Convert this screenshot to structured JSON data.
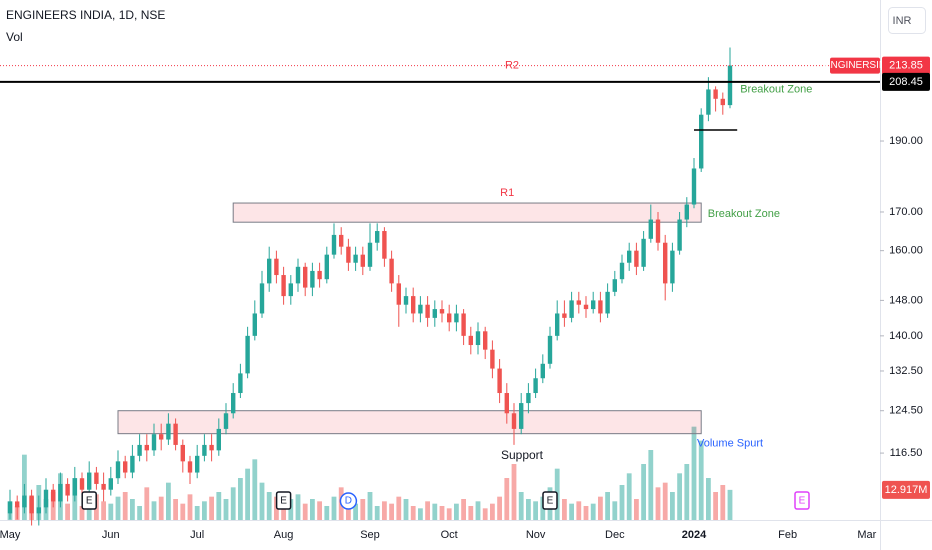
{
  "chart_data": {
    "type": "candlestick",
    "title": "ENGINEERS INDIA, 1D, NSE",
    "indicator": "Vol",
    "currency": "INR",
    "symbol": "ENGINERSIN",
    "log_scale": true,
    "up_color": "#26a69a",
    "down_color": "#ef5350",
    "ylim": [
      104.9,
      237
    ],
    "yticks": [
      {
        "value": 116.5,
        "label": "116.50"
      },
      {
        "value": 124.5,
        "label": "124.50"
      },
      {
        "value": 132.5,
        "label": "132.50"
      },
      {
        "value": 140,
        "label": "140.00"
      },
      {
        "value": 148,
        "label": "148.00"
      },
      {
        "value": 160,
        "label": "160.00"
      },
      {
        "value": 170,
        "label": "170.00"
      },
      {
        "value": 190,
        "label": "190.00"
      }
    ],
    "categories": [
      "May",
      null,
      null,
      null,
      null,
      null,
      null,
      null,
      null,
      null,
      null,
      null,
      null,
      null,
      "Jun",
      null,
      null,
      null,
      null,
      null,
      null,
      null,
      null,
      null,
      null,
      null,
      "Jul",
      null,
      null,
      null,
      null,
      null,
      null,
      null,
      null,
      null,
      null,
      null,
      "Aug",
      null,
      null,
      null,
      null,
      null,
      null,
      null,
      null,
      null,
      null,
      null,
      "Sep",
      null,
      null,
      null,
      null,
      null,
      null,
      null,
      null,
      null,
      null,
      "Oct",
      null,
      null,
      null,
      null,
      null,
      null,
      null,
      null,
      null,
      null,
      null,
      "Nov",
      null,
      null,
      null,
      null,
      null,
      null,
      null,
      null,
      null,
      null,
      "Dec",
      null,
      null,
      null,
      null,
      null,
      null,
      null,
      null,
      null,
      null,
      "2024",
      null,
      null,
      null,
      null,
      null,
      null,
      null,
      null,
      null,
      null,
      null,
      null,
      "Feb",
      null,
      null,
      null,
      null,
      null,
      null,
      null,
      null,
      null,
      null,
      "Mar",
      null
    ],
    "open": [
      106,
      108,
      107,
      109,
      106,
      107,
      110,
      108,
      111,
      109,
      112,
      110,
      113,
      111,
      110,
      112,
      115,
      113,
      116,
      118,
      117,
      120,
      119,
      122,
      118,
      115,
      113,
      116,
      118,
      117,
      121,
      124,
      128,
      132,
      140,
      145,
      152,
      158,
      154,
      149,
      152,
      156,
      151,
      155,
      153,
      159,
      164,
      161,
      157,
      159,
      156,
      162,
      165,
      158,
      152,
      147,
      149,
      145,
      147,
      144,
      146,
      145,
      143,
      145,
      140,
      138,
      141,
      137,
      133,
      128,
      124,
      121,
      126,
      128,
      131,
      134,
      140,
      145,
      144,
      148,
      147,
      146,
      148,
      145,
      150,
      153,
      157,
      160,
      156,
      163,
      168,
      162,
      152,
      160,
      168,
      172,
      182,
      198,
      206,
      203,
      201,
      null,
      null,
      null,
      null,
      null,
      null,
      null,
      null,
      null,
      null,
      null,
      null,
      null,
      null,
      null,
      null,
      null,
      null,
      null,
      null
    ],
    "high": [
      110,
      109,
      111,
      110,
      109,
      112,
      111,
      113,
      112,
      114,
      113,
      115,
      114,
      113,
      114,
      117,
      116,
      118,
      120,
      120,
      122,
      122,
      124,
      123,
      119,
      116,
      118,
      120,
      120,
      123,
      126,
      130,
      134,
      142,
      148,
      155,
      161,
      160,
      156,
      154,
      158,
      157,
      157,
      157,
      161,
      167,
      166,
      163,
      161,
      161,
      167,
      167,
      166,
      160,
      154,
      151,
      151,
      149,
      149,
      148,
      148,
      147,
      147,
      146,
      142,
      143,
      142,
      139,
      135,
      130,
      126,
      128,
      130,
      133,
      136,
      142,
      148,
      148,
      150,
      150,
      149,
      150,
      150,
      152,
      155,
      159,
      162,
      162,
      165,
      172,
      170,
      164,
      162,
      170,
      174,
      185,
      200,
      210,
      207,
      205,
      220,
      null,
      null,
      null,
      null,
      null,
      null,
      null,
      null,
      null,
      null,
      null,
      null,
      null,
      null,
      null,
      null,
      null,
      null,
      null,
      null
    ],
    "low": [
      105,
      105,
      106,
      104,
      104,
      106,
      107,
      107,
      108,
      108,
      109,
      109,
      110,
      108,
      109,
      111,
      112,
      112,
      115,
      115,
      116,
      117,
      118,
      117,
      113,
      111,
      112,
      115,
      115,
      116,
      120,
      123,
      127,
      131,
      139,
      144,
      150,
      152,
      147,
      147,
      150,
      149,
      149,
      151,
      152,
      158,
      159,
      155,
      155,
      154,
      155,
      160,
      156,
      150,
      142,
      145,
      143,
      143,
      142,
      142,
      143,
      141,
      141,
      138,
      136,
      136,
      135,
      131,
      126,
      122,
      118,
      120,
      124,
      127,
      130,
      133,
      139,
      142,
      143,
      145,
      144,
      145,
      143,
      144,
      149,
      152,
      155,
      154,
      155,
      162,
      160,
      148,
      150,
      159,
      166,
      171,
      181,
      196,
      199,
      198,
      200,
      null,
      null,
      null,
      null,
      null,
      null,
      null,
      null,
      null,
      null,
      null,
      null,
      null,
      null,
      null,
      null,
      null,
      null,
      null,
      null
    ],
    "close": [
      108,
      107,
      109,
      106,
      107,
      110,
      108,
      111,
      109,
      112,
      110,
      113,
      111,
      110,
      112,
      115,
      113,
      116,
      118,
      117,
      120,
      119,
      122,
      118,
      115,
      113,
      116,
      118,
      117,
      121,
      124,
      128,
      132,
      140,
      145,
      152,
      158,
      154,
      149,
      152,
      156,
      151,
      155,
      153,
      159,
      164,
      161,
      157,
      159,
      156,
      162,
      165,
      158,
      152,
      147,
      149,
      145,
      147,
      144,
      146,
      145,
      143,
      145,
      140,
      138,
      141,
      137,
      133,
      128,
      124,
      121,
      126,
      128,
      131,
      134,
      140,
      145,
      144,
      148,
      147,
      146,
      148,
      145,
      150,
      153,
      157,
      160,
      156,
      163,
      168,
      162,
      152,
      160,
      168,
      172,
      182,
      198,
      206,
      203,
      201,
      213.85,
      null,
      null,
      null,
      null,
      null,
      null,
      null,
      null,
      null,
      null,
      null,
      null,
      null,
      null,
      null,
      null,
      null,
      null,
      null,
      null
    ],
    "volume": {
      "ylim": [
        0,
        60
      ],
      "values": [
        8,
        6,
        28,
        10,
        15,
        9,
        12,
        20,
        7,
        18,
        6,
        9,
        11,
        8,
        7,
        10,
        12,
        9,
        6,
        14,
        8,
        10,
        16,
        9,
        7,
        11,
        6,
        8,
        10,
        12,
        9,
        14,
        18,
        22,
        26,
        16,
        12,
        10,
        8,
        9,
        11,
        7,
        9,
        8,
        6,
        10,
        14,
        8,
        7,
        9,
        12,
        6,
        8,
        7,
        10,
        9,
        6,
        5,
        8,
        7,
        6,
        5,
        7,
        9,
        6,
        8,
        5,
        7,
        10,
        18,
        24,
        12,
        9,
        8,
        10,
        14,
        22,
        9,
        7,
        8,
        6,
        7,
        10,
        12,
        8,
        15,
        20,
        9,
        24,
        30,
        14,
        16,
        12,
        20,
        24,
        40,
        34,
        18,
        12,
        15,
        12.917,
        null,
        null,
        null,
        null,
        null,
        null,
        null,
        null,
        null,
        null,
        null,
        null,
        null,
        null,
        null,
        null,
        null,
        null,
        null,
        null
      ],
      "last_value_label": {
        "value": 12.917,
        "label": "12.917M"
      }
    },
    "price_line": {
      "value": 213.85,
      "label": "R2",
      "color": "#f23645"
    },
    "resistance_line": {
      "value": 208.45,
      "color": "#000000"
    },
    "base_segment": {
      "value": 193.3,
      "start": 95,
      "end": 101
    },
    "zones": [
      {
        "label": "R1",
        "from": 167.3,
        "to": 172.4,
        "start": 31,
        "end": 96
      },
      {
        "label": "Support",
        "from": 120.1,
        "to": 124.5,
        "start": 15,
        "end": 96
      }
    ],
    "annotations": [
      {
        "text": "Breakout Zone",
        "x": 96.5,
        "y": 169.5,
        "color": "#43a047"
      },
      {
        "text": "Breakout Zone",
        "x": 101,
        "y": 206,
        "color": "#43a047"
      },
      {
        "text": "Volume Spurt",
        "x": 95,
        "y": 118.2,
        "color": "#2962ff"
      }
    ],
    "events": [
      {
        "label": "E",
        "index": 11,
        "color": "#131722"
      },
      {
        "label": "E",
        "index": 38,
        "color": "#131722"
      },
      {
        "label": "D",
        "index": 47,
        "color": "#2962ff"
      },
      {
        "label": "E",
        "index": 75,
        "color": "#131722"
      },
      {
        "label": "E",
        "index": 110,
        "color": "#e040fb"
      }
    ]
  }
}
